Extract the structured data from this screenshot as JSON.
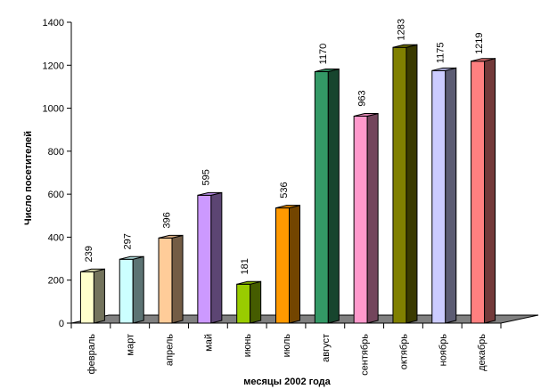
{
  "chart_data": {
    "type": "bar",
    "style": "3d",
    "title": "",
    "xlabel": "месяцы 2002 года",
    "ylabel": "Число посетителей",
    "ylim": [
      0,
      1400
    ],
    "yticks": [
      0,
      200,
      400,
      600,
      800,
      1000,
      1200,
      1400
    ],
    "grid": false,
    "legend": "none",
    "categories": [
      "февраль",
      "март",
      "апрель",
      "май",
      "июнь",
      "июль",
      "август",
      "сентябрь",
      "октябрь",
      "ноябрь",
      "декабрь"
    ],
    "value_labels": [
      "239",
      "297",
      "396",
      "595",
      "181",
      "536",
      "1170",
      "963",
      "1283",
      "1175",
      "1219"
    ],
    "series": [
      {
        "values": [
          239,
          297,
          396,
          595,
          181,
          536,
          1170,
          963,
          1283,
          1175,
          1219
        ]
      }
    ],
    "bar_colors": [
      "#FFFFCC",
      "#CCFFFF",
      "#FFCC99",
      "#CC99FF",
      "#99CC00",
      "#FF9900",
      "#339966",
      "#FF99CC",
      "#808000",
      "#CCCCFF",
      "#FF8080"
    ],
    "floor_color": "#808080"
  }
}
